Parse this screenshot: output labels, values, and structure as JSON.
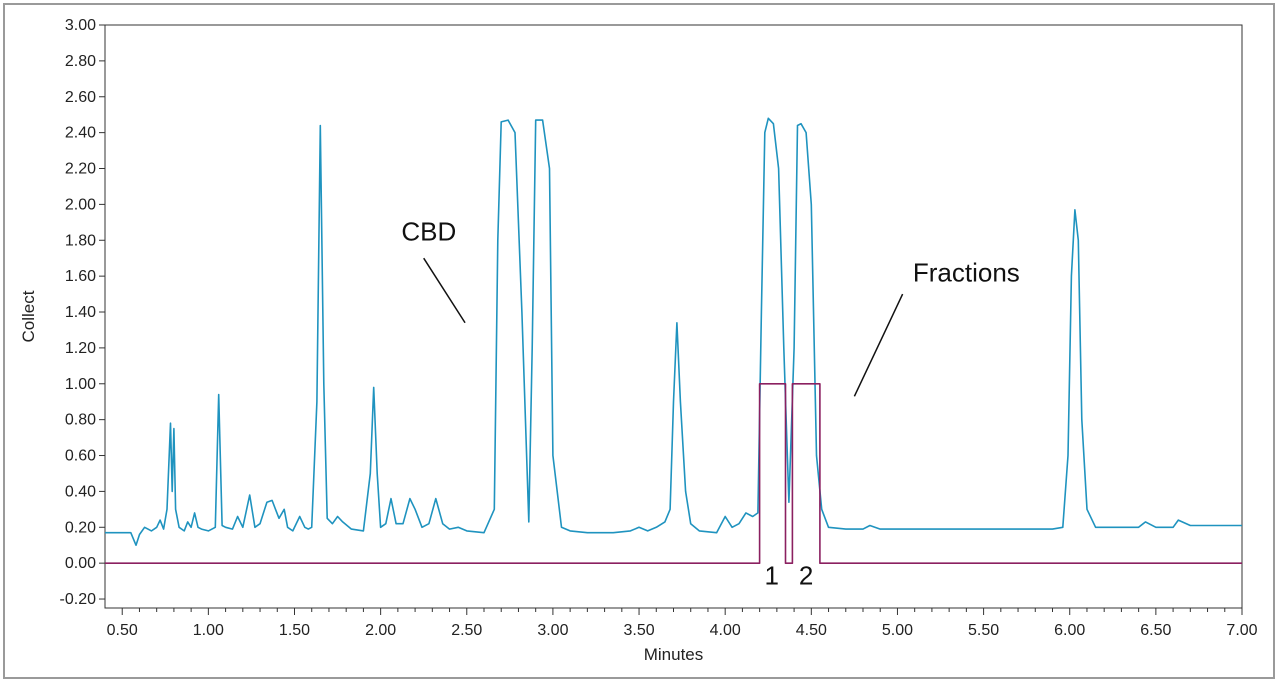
{
  "chart_data": {
    "type": "line",
    "title": "",
    "xlabel": "Minutes",
    "ylabel": "Collect",
    "xlim": [
      0.4,
      7.0
    ],
    "ylim": [
      -0.25,
      3.0
    ],
    "x_ticks": [
      "0.50",
      "1.00",
      "1.50",
      "2.00",
      "2.50",
      "3.00",
      "3.50",
      "4.00",
      "4.50",
      "5.00",
      "5.50",
      "6.00",
      "6.50",
      "7.00"
    ],
    "y_ticks": [
      "-0.20",
      "0.00",
      "0.20",
      "0.40",
      "0.60",
      "0.80",
      "1.00",
      "1.20",
      "1.40",
      "1.60",
      "1.80",
      "2.00",
      "2.20",
      "2.40",
      "2.60",
      "2.80",
      "3.00"
    ],
    "grid": false,
    "colors": {
      "chromatogram": "#1f93bf",
      "fractions": "#8b2060",
      "axis": "#333333",
      "border": "#9a9a9a"
    },
    "series": [
      {
        "x": [
          0.4,
          0.55,
          0.58,
          0.6,
          0.63,
          0.67,
          0.7,
          0.72,
          0.74,
          0.76,
          0.78,
          0.79,
          0.8,
          0.81,
          0.83,
          0.86,
          0.88,
          0.9,
          0.92,
          0.94,
          0.96,
          1.0,
          1.04,
          1.06,
          1.08,
          1.1,
          1.14,
          1.17,
          1.2,
          1.24,
          1.27,
          1.3,
          1.34,
          1.37,
          1.39,
          1.41,
          1.44,
          1.46,
          1.49,
          1.53,
          1.56,
          1.58,
          1.6,
          1.63,
          1.65,
          1.67,
          1.69,
          1.72,
          1.75,
          1.78,
          1.83,
          1.9,
          1.94,
          1.96,
          1.98,
          2.0,
          2.03,
          2.06,
          2.09,
          2.13,
          2.17,
          2.2,
          2.24,
          2.28,
          2.32,
          2.36,
          2.4,
          2.45,
          2.5,
          2.6,
          2.66,
          2.68,
          2.7,
          2.74,
          2.78,
          2.82,
          2.86,
          2.88,
          2.9,
          2.94,
          2.98,
          3.0,
          3.05,
          3.1,
          3.2,
          3.35,
          3.45,
          3.5,
          3.55,
          3.6,
          3.65,
          3.68,
          3.7,
          3.72,
          3.74,
          3.77,
          3.8,
          3.85,
          3.95,
          4.0,
          4.04,
          4.08,
          4.12,
          4.16,
          4.19,
          4.21,
          4.23,
          4.25,
          4.28,
          4.31,
          4.34,
          4.37,
          4.4,
          4.42,
          4.44,
          4.47,
          4.5,
          4.53,
          4.56,
          4.6,
          4.7,
          4.8,
          4.84,
          4.9,
          5.0,
          5.1,
          5.3,
          5.5,
          5.9,
          5.96,
          5.99,
          6.01,
          6.03,
          6.05,
          6.07,
          6.1,
          6.15,
          6.2,
          6.4,
          6.44,
          6.5,
          6.6,
          6.63,
          6.7,
          7.0
        ],
        "y": [
          0.17,
          0.17,
          0.1,
          0.16,
          0.2,
          0.18,
          0.2,
          0.24,
          0.19,
          0.3,
          0.78,
          0.4,
          0.75,
          0.3,
          0.2,
          0.18,
          0.23,
          0.2,
          0.28,
          0.2,
          0.19,
          0.18,
          0.2,
          0.94,
          0.21,
          0.2,
          0.19,
          0.26,
          0.2,
          0.38,
          0.2,
          0.22,
          0.34,
          0.35,
          0.3,
          0.25,
          0.3,
          0.2,
          0.18,
          0.26,
          0.2,
          0.19,
          0.2,
          0.9,
          2.44,
          1.0,
          0.25,
          0.22,
          0.26,
          0.23,
          0.19,
          0.18,
          0.5,
          0.98,
          0.5,
          0.2,
          0.22,
          0.36,
          0.22,
          0.22,
          0.36,
          0.3,
          0.2,
          0.22,
          0.36,
          0.22,
          0.19,
          0.2,
          0.18,
          0.17,
          0.3,
          1.8,
          2.46,
          2.47,
          2.4,
          1.4,
          0.23,
          1.2,
          2.47,
          2.47,
          2.2,
          0.6,
          0.2,
          0.18,
          0.17,
          0.17,
          0.18,
          0.2,
          0.18,
          0.2,
          0.23,
          0.3,
          0.9,
          1.34,
          0.9,
          0.4,
          0.22,
          0.18,
          0.17,
          0.26,
          0.2,
          0.22,
          0.28,
          0.26,
          0.28,
          1.4,
          2.4,
          2.48,
          2.45,
          2.2,
          1.2,
          0.34,
          1.2,
          2.44,
          2.45,
          2.4,
          2.0,
          0.6,
          0.3,
          0.2,
          0.19,
          0.19,
          0.21,
          0.19,
          0.19,
          0.19,
          0.19,
          0.19,
          0.19,
          0.2,
          0.6,
          1.6,
          1.97,
          1.8,
          0.8,
          0.3,
          0.2,
          0.2,
          0.2,
          0.23,
          0.2,
          0.2,
          0.24,
          0.21,
          0.21
        ]
      },
      {
        "x": [
          0.4,
          4.2,
          4.2,
          4.35,
          4.35,
          4.39,
          4.39,
          4.55,
          4.55,
          7.0
        ],
        "y": [
          0,
          0,
          1,
          1,
          0,
          0,
          1,
          1,
          0,
          0
        ]
      }
    ],
    "annotations": [
      {
        "text": "CBD",
        "x": 2.28,
        "y": 1.8
      },
      {
        "text": "Fractions",
        "x": 5.4,
        "y": 1.57
      },
      {
        "text": "1",
        "x": 4.27,
        "y": -0.12
      },
      {
        "text": "2",
        "x": 4.47,
        "y": -0.12
      }
    ]
  }
}
